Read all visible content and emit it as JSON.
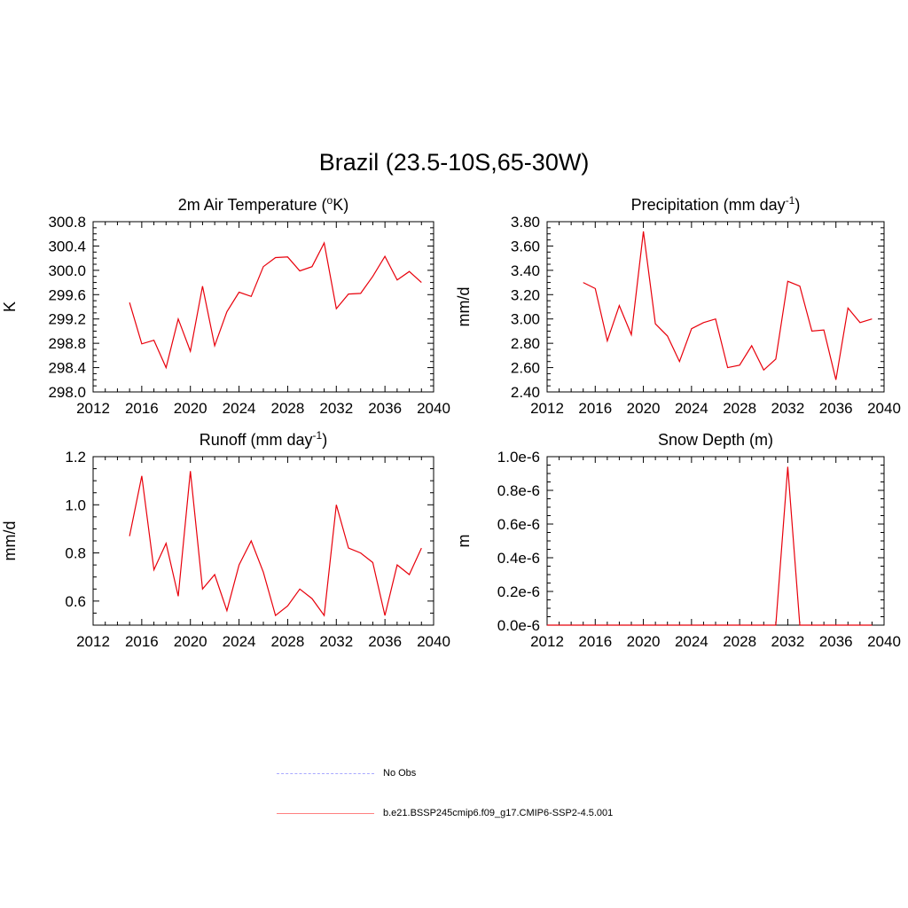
{
  "figure": {
    "title": "Brazil (23.5-10S,65-30W)"
  },
  "legend": [
    {
      "label": "No Obs",
      "style": "dashed",
      "color": "#a9a9ff"
    },
    {
      "label": "b.e21.BSSP245cmip6.f09_g17.CMIP6-SSP2-4.5.001",
      "style": "solid",
      "color": "#ff8080"
    }
  ],
  "chart_data": [
    {
      "type": "line",
      "title": "2m Air Temperature (°K)",
      "title_parts": [
        "2m Air Temperature (",
        "o",
        "K)"
      ],
      "ylabel": "K",
      "xlim": [
        2012,
        2040
      ],
      "ylim": [
        298.0,
        300.8
      ],
      "xticks": [
        "2012",
        "2016",
        "2020",
        "2024",
        "2028",
        "2032",
        "2036",
        "2040"
      ],
      "yticks": [
        "298.0",
        "298.4",
        "298.8",
        "299.2",
        "299.6",
        "300.0",
        "300.4",
        "300.8"
      ],
      "series": [
        {
          "color": "#e8000b",
          "x": [
            2015,
            2016,
            2017,
            2018,
            2019,
            2020,
            2021,
            2022,
            2023,
            2024,
            2025,
            2026,
            2027,
            2028,
            2029,
            2030,
            2031,
            2032,
            2033,
            2034,
            2035,
            2036,
            2037,
            2038,
            2039
          ],
          "y": [
            299.47,
            298.79,
            298.85,
            298.4,
            299.2,
            298.67,
            299.74,
            298.76,
            299.32,
            299.64,
            299.57,
            300.06,
            300.21,
            300.22,
            299.99,
            300.06,
            300.45,
            299.37,
            299.61,
            299.62,
            299.9,
            300.23,
            299.84,
            299.98,
            299.8
          ]
        }
      ]
    },
    {
      "type": "line",
      "title": "Precipitation (mm day-1)",
      "title_parts": [
        "Precipitation (mm day",
        "-1",
        ")"
      ],
      "ylabel": "mm/d",
      "xlim": [
        2012,
        2040
      ],
      "ylim": [
        2.4,
        3.8
      ],
      "xticks": [
        "2012",
        "2016",
        "2020",
        "2024",
        "2028",
        "2032",
        "2036",
        "2040"
      ],
      "yticks": [
        "2.40",
        "2.60",
        "2.80",
        "3.00",
        "3.20",
        "3.40",
        "3.60",
        "3.80"
      ],
      "series": [
        {
          "color": "#e8000b",
          "x": [
            2015,
            2016,
            2017,
            2018,
            2019,
            2020,
            2021,
            2022,
            2023,
            2024,
            2025,
            2026,
            2027,
            2028,
            2029,
            2030,
            2031,
            2032,
            2033,
            2034,
            2035,
            2036,
            2037,
            2038,
            2039
          ],
          "y": [
            3.3,
            3.25,
            2.82,
            3.11,
            2.87,
            3.72,
            2.96,
            2.86,
            2.65,
            2.92,
            2.97,
            3.0,
            2.6,
            2.62,
            2.78,
            2.58,
            2.67,
            3.31,
            3.27,
            2.9,
            2.91,
            2.5,
            3.09,
            2.97,
            3.0
          ]
        }
      ]
    },
    {
      "type": "line",
      "title": "Runoff (mm day-1)",
      "title_parts": [
        "Runoff (mm day",
        "-1",
        ")"
      ],
      "ylabel": "mm/d",
      "xlim": [
        2012,
        2040
      ],
      "ylim": [
        0.5,
        1.2
      ],
      "xticks": [
        "2012",
        "2016",
        "2020",
        "2024",
        "2028",
        "2032",
        "2036",
        "2040"
      ],
      "yticks": [
        "0.6",
        "0.8",
        "1.0",
        "1.2"
      ],
      "series": [
        {
          "color": "#e8000b",
          "x": [
            2015,
            2016,
            2017,
            2018,
            2019,
            2020,
            2021,
            2022,
            2023,
            2024,
            2025,
            2026,
            2027,
            2028,
            2029,
            2030,
            2031,
            2032,
            2033,
            2034,
            2035,
            2036,
            2037,
            2038,
            2039
          ],
          "y": [
            0.87,
            1.12,
            0.73,
            0.84,
            0.62,
            1.14,
            0.65,
            0.71,
            0.56,
            0.75,
            0.85,
            0.72,
            0.54,
            0.58,
            0.65,
            0.61,
            0.54,
            1.0,
            0.82,
            0.8,
            0.76,
            0.54,
            0.75,
            0.71,
            0.82
          ]
        }
      ]
    },
    {
      "type": "line",
      "title": "Snow Depth (m)",
      "title_parts": [
        "Snow Depth (m)",
        "",
        ""
      ],
      "ylabel": "m",
      "xlim": [
        2012,
        2040
      ],
      "ylim": [
        0,
        1e-06
      ],
      "xticks": [
        "2012",
        "2016",
        "2020",
        "2024",
        "2028",
        "2032",
        "2036",
        "2040"
      ],
      "yticks": [
        "0.0e-6",
        "0.2e-6",
        "0.4e-6",
        "0.6e-6",
        "0.8e-6",
        "1.0e-6"
      ],
      "series": [
        {
          "color": "#e8000b",
          "x": [
            2015,
            2016,
            2017,
            2018,
            2019,
            2020,
            2021,
            2022,
            2023,
            2024,
            2025,
            2026,
            2027,
            2028,
            2029,
            2030,
            2031,
            2032,
            2033,
            2034,
            2035,
            2036,
            2037,
            2038,
            2039
          ],
          "y": [
            0,
            0,
            0,
            0,
            0,
            0,
            0,
            0,
            0,
            0,
            0,
            0,
            0,
            0,
            0,
            0,
            0,
            9.4e-07,
            0,
            0,
            0,
            0,
            0,
            0,
            0
          ]
        }
      ]
    }
  ]
}
